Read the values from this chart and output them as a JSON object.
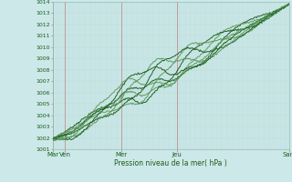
{
  "title": "",
  "xlabel": "Pression niveau de la mer( hPa )",
  "ylabel": "",
  "ylim": [
    1001,
    1014
  ],
  "yticks": [
    1001,
    1002,
    1003,
    1004,
    1005,
    1006,
    1007,
    1008,
    1009,
    1010,
    1011,
    1012,
    1013,
    1014
  ],
  "x_day_labels": [
    "Mar",
    "Ven",
    "Mer",
    "Jeu",
    "Sam"
  ],
  "x_day_positions": [
    0,
    16,
    88,
    160,
    304
  ],
  "bg_color": "#cce8e8",
  "grid_color_v": "#b8d8d8",
  "grid_color_h": "#c0d8d0",
  "line_color": "#1a5c1a",
  "line_color_light": "#5a9a5a",
  "vertical_line_color": "#c09090",
  "n_points": 305
}
